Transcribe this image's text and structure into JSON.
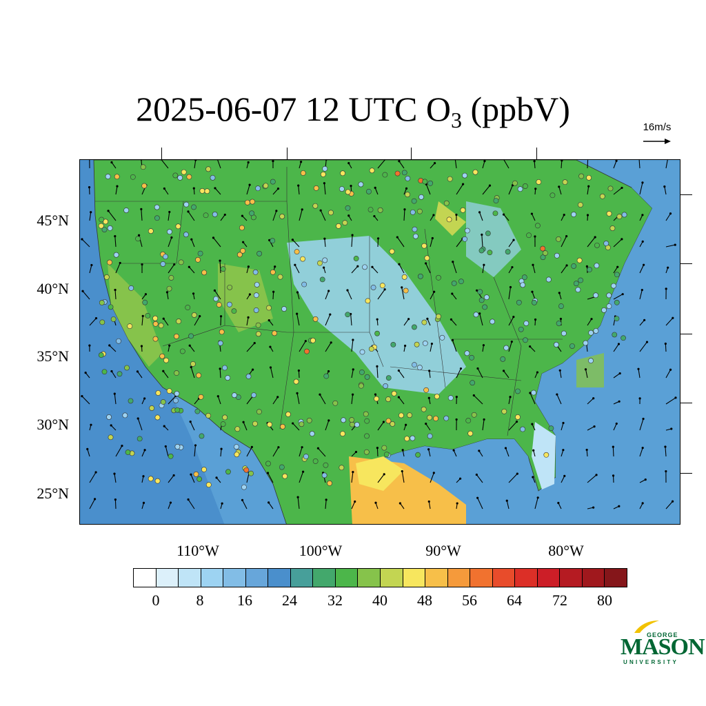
{
  "title": {
    "prefix": "2025-06-07 12 UTC O",
    "subscript": "3",
    "suffix": " (ppbV)"
  },
  "wind_key": {
    "label": "16m/s"
  },
  "axes": {
    "lat_labels": [
      "45°N",
      "40°N",
      "35°N",
      "30°N",
      "25°N"
    ],
    "lon_labels": [
      "110°W",
      "100°W",
      "90°W",
      "80°W"
    ]
  },
  "colorbar": {
    "labels": [
      "0",
      "8",
      "16",
      "24",
      "32",
      "40",
      "48",
      "56",
      "64",
      "72",
      "80"
    ],
    "colors": [
      "#ffffff",
      "#dcf0fa",
      "#bfe4f7",
      "#9dd3f2",
      "#82bde6",
      "#67a6da",
      "#4a8fcc",
      "#479f9a",
      "#43a86c",
      "#4cb64a",
      "#86c34b",
      "#c3d552",
      "#f7e65e",
      "#f7bf49",
      "#f59a3b",
      "#f1722f",
      "#e84c2b",
      "#dc2f27",
      "#cc1e27",
      "#b51b22",
      "#a0181d",
      "#85161a"
    ]
  },
  "logo": {
    "line1": "GEORGE",
    "line2": "MASON",
    "line3": "UNIVERSITY"
  },
  "map": {
    "land_color": "#4cb64a",
    "ocean_color": "#5aa0d6",
    "high_o3_color": "#f7bf49",
    "low_o3_color": "#9dd3f2"
  }
}
